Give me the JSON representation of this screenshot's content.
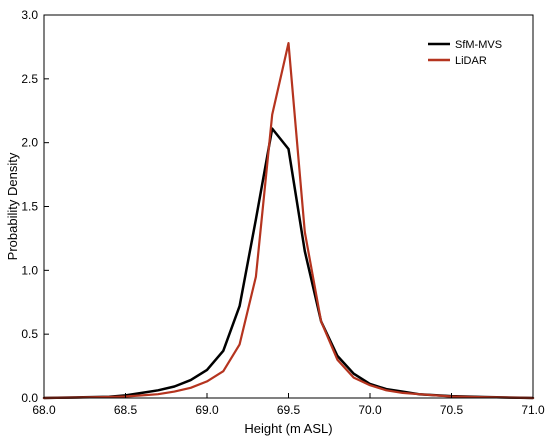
{
  "chart_data": {
    "type": "line",
    "title": "",
    "xlabel": "Height (m ASL)",
    "ylabel": "Probability Density",
    "xlim": [
      68.0,
      71.0
    ],
    "ylim": [
      0.0,
      3.0
    ],
    "xticks": [
      68.0,
      68.5,
      69.0,
      69.5,
      70.0,
      70.5,
      71.0
    ],
    "xtick_labels": [
      "68.0",
      "68.5",
      "69.0",
      "69.5",
      "70.0",
      "70.5",
      "71.0"
    ],
    "yticks": [
      0.0,
      0.5,
      1.0,
      1.5,
      2.0,
      2.5,
      3.0
    ],
    "ytick_labels": [
      "0.0",
      "0.5",
      "1.0",
      "1.5",
      "2.0",
      "2.5",
      "3.0"
    ],
    "grid": false,
    "legend_position": "top-right",
    "series": [
      {
        "name": "SfM-MVS",
        "color": "#000000",
        "x": [
          68.0,
          68.2,
          68.4,
          68.5,
          68.6,
          68.7,
          68.8,
          68.9,
          69.0,
          69.1,
          69.2,
          69.3,
          69.4,
          69.5,
          69.6,
          69.7,
          69.8,
          69.9,
          70.0,
          70.1,
          70.2,
          70.3,
          70.5,
          70.7,
          71.0
        ],
        "y": [
          0.0,
          0.005,
          0.01,
          0.02,
          0.04,
          0.06,
          0.09,
          0.14,
          0.22,
          0.37,
          0.72,
          1.4,
          2.11,
          1.95,
          1.15,
          0.6,
          0.33,
          0.19,
          0.11,
          0.07,
          0.05,
          0.03,
          0.015,
          0.008,
          0.0
        ]
      },
      {
        "name": "LiDAR",
        "color": "#b5341f",
        "x": [
          68.0,
          68.2,
          68.4,
          68.5,
          68.6,
          68.7,
          68.8,
          68.9,
          69.0,
          69.1,
          69.2,
          69.3,
          69.4,
          69.5,
          69.6,
          69.7,
          69.8,
          69.9,
          70.0,
          70.1,
          70.2,
          70.3,
          70.5,
          70.7,
          71.0
        ],
        "y": [
          0.0,
          0.003,
          0.008,
          0.012,
          0.02,
          0.03,
          0.05,
          0.08,
          0.13,
          0.21,
          0.42,
          0.95,
          2.22,
          2.78,
          1.3,
          0.6,
          0.3,
          0.16,
          0.1,
          0.06,
          0.04,
          0.03,
          0.012,
          0.006,
          0.0
        ]
      }
    ]
  }
}
